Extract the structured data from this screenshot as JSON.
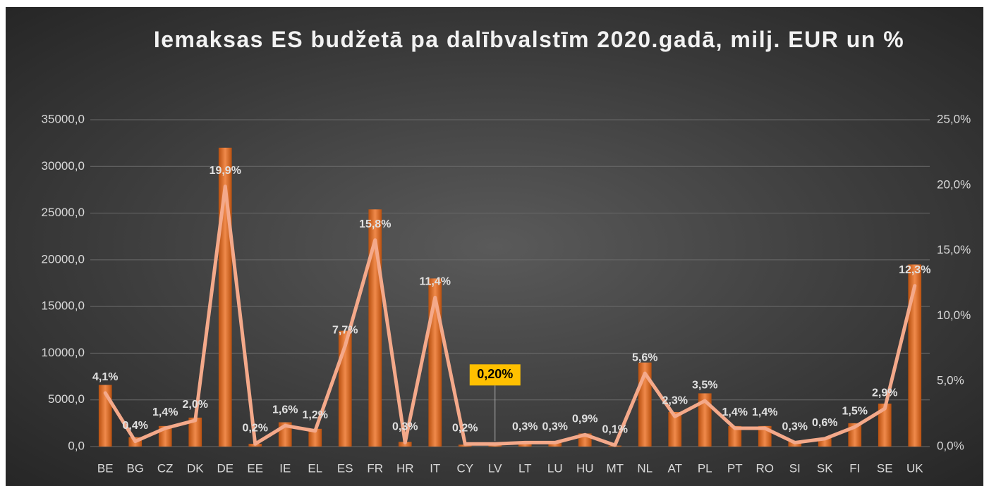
{
  "chart_data": {
    "type": "bar_line",
    "title": "Iemaksas ES budžetā pa dalībvalstīm 2020.gadā, milj. EUR un %",
    "categories": [
      "BE",
      "BG",
      "CZ",
      "DK",
      "DE",
      "EE",
      "IE",
      "EL",
      "ES",
      "FR",
      "HR",
      "IT",
      "CY",
      "LV",
      "LT",
      "LU",
      "HU",
      "MT",
      "NL",
      "AT",
      "PL",
      "PT",
      "RO",
      "SI",
      "SK",
      "FI",
      "SE",
      "UK"
    ],
    "series": [
      {
        "type": "bar",
        "color": "#e07030",
        "values": [
          6600,
          1000,
          2200,
          3100,
          32000,
          300,
          2600,
          1900,
          12400,
          25400,
          500,
          18000,
          200,
          300,
          500,
          400,
          1400,
          100,
          9000,
          3700,
          5700,
          2200,
          2200,
          500,
          900,
          2500,
          4600,
          19500
        ]
      },
      {
        "type": "line",
        "axis": "y2",
        "color": "#f4a98a",
        "values": [
          4.1,
          0.4,
          1.4,
          2.0,
          19.9,
          0.2,
          1.6,
          1.2,
          7.7,
          15.8,
          0.3,
          11.4,
          0.2,
          0.2,
          0.3,
          0.3,
          0.9,
          0.1,
          5.6,
          2.3,
          3.5,
          1.4,
          1.4,
          0.3,
          0.6,
          1.5,
          2.9,
          12.3
        ],
        "value_labels": [
          "4,1%",
          "0,4%",
          "1,4%",
          "2,0%",
          "19,9%",
          "0,2%",
          "1,6%",
          "1,2%",
          "7,7%",
          "15,8%",
          "0,3%",
          "11,4%",
          "0,2%",
          "0,20%",
          "0,3%",
          "0,3%",
          "0,9%",
          "0,1%",
          "5,6%",
          "2,3%",
          "3,5%",
          "1,4%",
          "1,4%",
          "0,3%",
          "0,6%",
          "1,5%",
          "2,9%",
          "12,3%"
        ]
      }
    ],
    "ylim": [
      0,
      35000
    ],
    "yticks": [
      {
        "value": 0,
        "label": "0,0"
      },
      {
        "value": 5000,
        "label": "5000,0"
      },
      {
        "value": 10000,
        "label": "10000,0"
      },
      {
        "value": 15000,
        "label": "15000,0"
      },
      {
        "value": 20000,
        "label": "20000,0"
      },
      {
        "value": 25000,
        "label": "25000,0"
      },
      {
        "value": 30000,
        "label": "30000,0"
      },
      {
        "value": 35000,
        "label": "35000,0"
      }
    ],
    "y2lim": [
      0,
      25
    ],
    "y2ticks": [
      {
        "value": 0,
        "label": "0,0%"
      },
      {
        "value": 5,
        "label": "5,0%"
      },
      {
        "value": 10,
        "label": "10,0%"
      },
      {
        "value": 15,
        "label": "15,0%"
      },
      {
        "value": 20,
        "label": "20,0%"
      },
      {
        "value": 25,
        "label": "25,0%"
      }
    ],
    "grid": true
  }
}
